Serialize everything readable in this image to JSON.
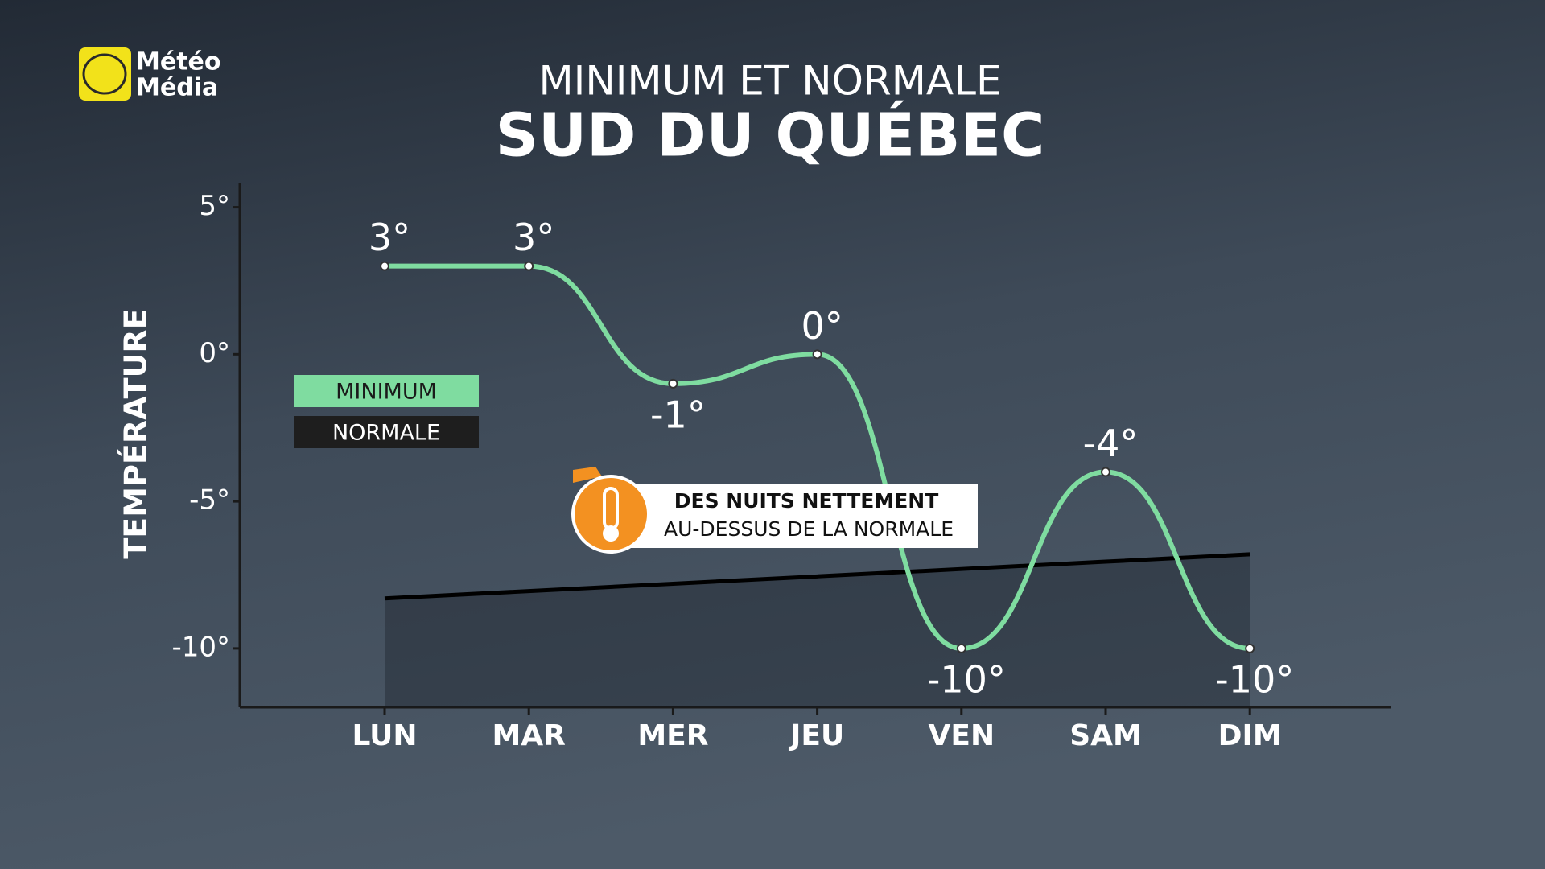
{
  "brand": [
    "Météo",
    "Média"
  ],
  "chart_data": {
    "type": "line",
    "title": "MINIMUM ET NORMALE",
    "subtitle": "SUD DU QUÉBEC",
    "y_label": "TEMPÉRATURE",
    "categories": [
      "LUN",
      "MAR",
      "MER",
      "JEU",
      "VEN",
      "SAM",
      "DIM"
    ],
    "series": [
      {
        "name": "MINIMUM",
        "color": "#7fdca0",
        "values": [
          3,
          3,
          -1,
          0,
          -10,
          -4,
          -10
        ],
        "value_labels": [
          "3°",
          "3°",
          "-1°",
          "0°",
          "-10°",
          "-4°",
          "-10°"
        ]
      },
      {
        "name": "NORMALE",
        "color": "#000000",
        "values": [
          -8.3,
          -8.05,
          -7.8,
          -7.55,
          -7.3,
          -7.05,
          -6.8
        ]
      }
    ],
    "ylim": [
      -12,
      6
    ],
    "yticks": [
      {
        "value": 5,
        "label": "5°"
      },
      {
        "value": 0,
        "label": "0°"
      },
      {
        "value": -5,
        "label": "-5°"
      },
      {
        "value": -10,
        "label": "-10°"
      }
    ],
    "annotation": [
      "DES NUITS NETTEMENT",
      "AU-DESSUS DE LA NORMALE"
    ]
  }
}
